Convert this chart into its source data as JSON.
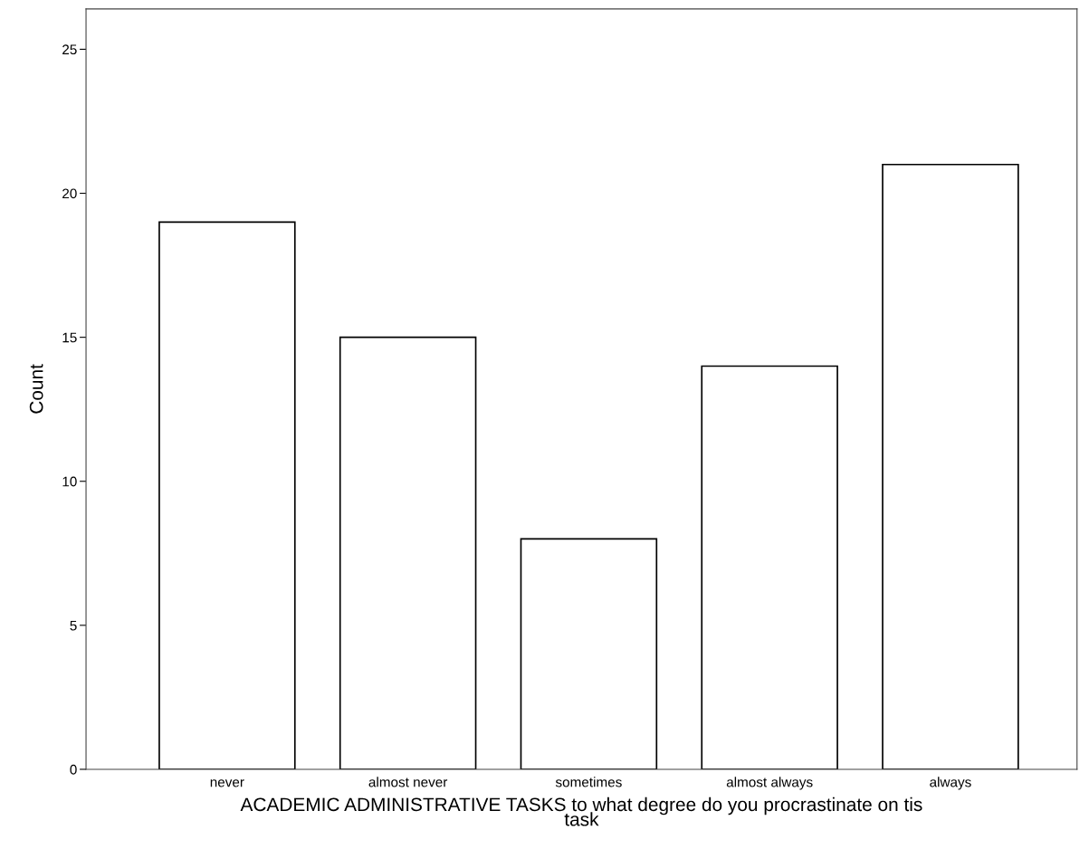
{
  "chart_data": {
    "type": "bar",
    "xlabel": "ACADEMIC ADMINISTRATIVE TASKS to what degree do you procrastinate on tis\ntask",
    "ylabel": "Count",
    "categories": [
      "never",
      "almost never",
      "sometimes",
      "almost always",
      "always"
    ],
    "values": [
      19,
      15,
      8,
      14,
      21
    ],
    "color": "#ffffff",
    "ylim": [
      0,
      26.4
    ],
    "yticks": [
      0,
      5,
      10,
      15,
      20,
      25
    ],
    "grid": false,
    "legend": false
  }
}
